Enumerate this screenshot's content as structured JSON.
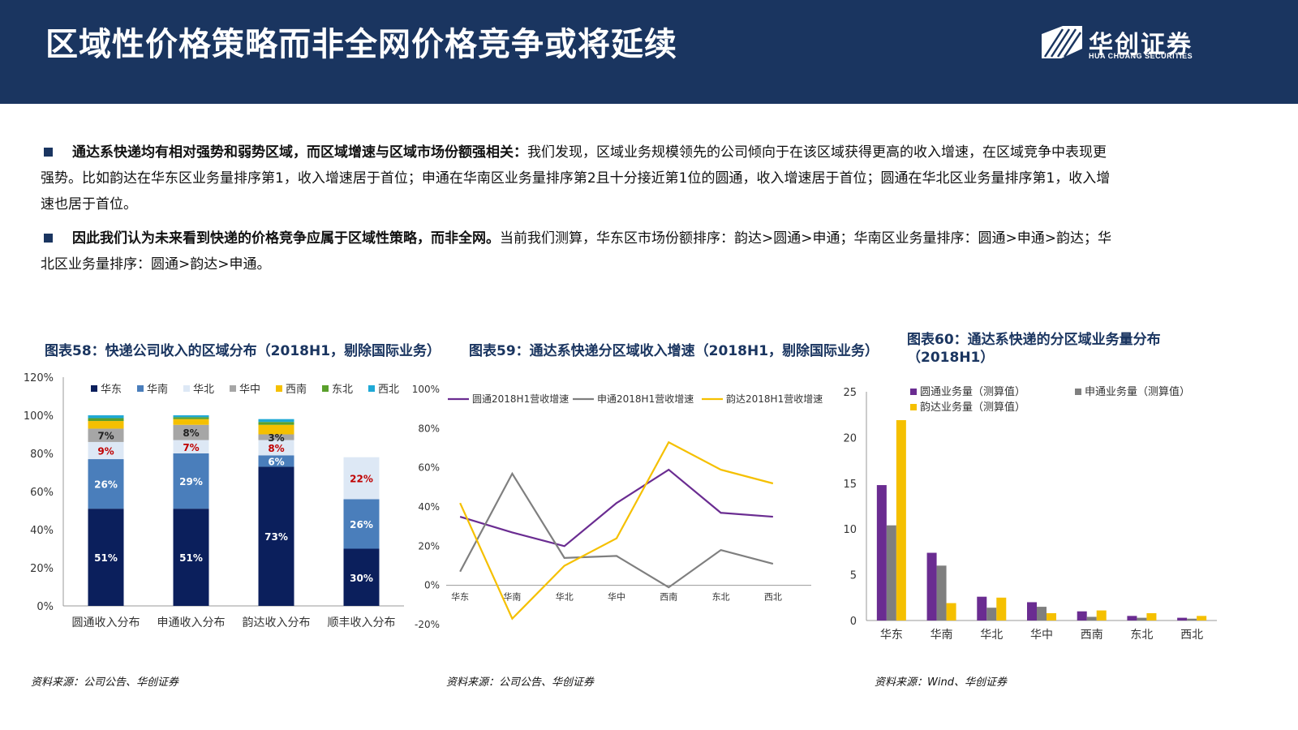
{
  "header": {
    "title": "区域性价格策略而非全网价格竞争或将延续",
    "logo_text": "华创证券",
    "logo_sub": "HUA CHUANG SECURITIES"
  },
  "bullets": [
    {
      "bold": "通达系快递均有相对强势和弱势区域，而区域增速与区域市场份额强相关：",
      "text": "我们发现，区域业务规模领先的公司倾向于在该区域获得更高的收入增速，在区域竞争中表现更强势。比如韵达在华东区业务量排序第1，收入增速居于首位；申通在华南区业务量排序第2且十分接近第1位的圆通，收入增速居于首位；圆通在华北区业务量排序第1，收入增速也居于首位。"
    },
    {
      "bold": "因此我们认为未来看到快递的价格竞争应属于区域性策略，而非全网。",
      "text": "当前我们测算，华东区市场份额排序：韵达>圆通>申通；华南区业务量排序：圆通>申通>韵达；华北区业务量排序：圆通>韵达>申通。"
    }
  ],
  "colors": {
    "navy": "#1a3560",
    "huadong": "#0b1f5c",
    "huanan": "#4a7ebb",
    "huabei": "#dde8f5",
    "huazhong": "#a6a6a6",
    "xinan": "#f5c000",
    "dongbei": "#5aa02c",
    "xibei": "#1fa9d6",
    "yuantong": "#6a2c91",
    "shentong": "#7f7f7f",
    "yunda": "#f5c000",
    "red_label": "#c00000"
  },
  "chart_data": [
    {
      "id": "fig58",
      "type": "bar",
      "stacked": true,
      "title": "图表58：快递公司收入的区域分布（2018H1，剔除国际业务）",
      "categories": [
        "圆通收入分布",
        "申通收入分布",
        "韵达收入分布",
        "顺丰收入分布"
      ],
      "series": [
        {
          "name": "华东",
          "values": [
            51,
            51,
            73,
            30
          ],
          "color": "#0b1f5c"
        },
        {
          "name": "华南",
          "values": [
            26,
            29,
            6,
            26
          ],
          "color": "#4a7ebb"
        },
        {
          "name": "华北",
          "values": [
            9,
            7,
            8,
            22
          ],
          "color": "#dde8f5"
        },
        {
          "name": "华中",
          "values": [
            7,
            8,
            3,
            0
          ],
          "color": "#a6a6a6"
        },
        {
          "name": "西南",
          "values": [
            4,
            3,
            5,
            0
          ],
          "color": "#f5c000"
        },
        {
          "name": "东北",
          "values": [
            1.5,
            1,
            1.5,
            0
          ],
          "color": "#5aa02c"
        },
        {
          "name": "西北",
          "values": [
            1.5,
            1,
            1.5,
            0
          ],
          "color": "#1fa9d6"
        }
      ],
      "data_labels": [
        {
          "cat": 0,
          "series": 0,
          "text": "51%"
        },
        {
          "cat": 0,
          "series": 1,
          "text": "26%"
        },
        {
          "cat": 0,
          "series": 2,
          "text": "9%"
        },
        {
          "cat": 0,
          "series": 3,
          "text": "7%"
        },
        {
          "cat": 1,
          "series": 0,
          "text": "51%"
        },
        {
          "cat": 1,
          "series": 1,
          "text": "29%"
        },
        {
          "cat": 1,
          "series": 2,
          "text": "7%"
        },
        {
          "cat": 1,
          "series": 3,
          "text": "8%"
        },
        {
          "cat": 2,
          "series": 0,
          "text": "73%"
        },
        {
          "cat": 2,
          "series": 1,
          "text": "6%"
        },
        {
          "cat": 2,
          "series": 2,
          "text": "8%"
        },
        {
          "cat": 2,
          "series": 3,
          "text": "3%"
        },
        {
          "cat": 3,
          "series": 0,
          "text": "30%"
        },
        {
          "cat": 3,
          "series": 1,
          "text": "26%"
        },
        {
          "cat": 3,
          "series": 2,
          "text": "22%"
        }
      ],
      "yticks": [
        "0%",
        "20%",
        "40%",
        "60%",
        "80%",
        "100%",
        "120%"
      ],
      "ylim": [
        0,
        120
      ],
      "legend": "top",
      "source": "资料来源：公司公告、华创证券"
    },
    {
      "id": "fig59",
      "type": "line",
      "title": "图表59：通达系快递分区域收入增速（2018H1，剔除国际业务）",
      "categories": [
        "华东",
        "华南",
        "华北",
        "华中",
        "西南",
        "东北",
        "西北"
      ],
      "series": [
        {
          "name": "圆通2018H1营收增速",
          "values": [
            35,
            27,
            20,
            42,
            59,
            37,
            35
          ],
          "color": "#6a2c91"
        },
        {
          "name": "申通2018H1营收增速",
          "values": [
            7,
            57,
            14,
            15,
            -1,
            18,
            11
          ],
          "color": "#7f7f7f"
        },
        {
          "name": "韵达2018H1营收增速",
          "values": [
            42,
            -17,
            10,
            24,
            73,
            59,
            52
          ],
          "color": "#f5c000"
        }
      ],
      "yticks": [
        "-20%",
        "0%",
        "20%",
        "40%",
        "60%",
        "80%",
        "100%"
      ],
      "ylim": [
        -20,
        100
      ],
      "legend": "top",
      "source": "资料来源：公司公告、华创证券"
    },
    {
      "id": "fig60",
      "type": "bar",
      "title": "图表60：通达系快递的分区域业务量分布（2018H1）",
      "categories": [
        "华东",
        "华南",
        "华北",
        "华中",
        "西南",
        "东北",
        "西北"
      ],
      "series": [
        {
          "name": "圆通业务量（测算值）",
          "values": [
            14.8,
            7.4,
            2.6,
            2.0,
            1.0,
            0.5,
            0.3
          ],
          "color": "#6a2c91"
        },
        {
          "name": "申通业务量（测算值）",
          "values": [
            10.4,
            6.0,
            1.4,
            1.5,
            0.4,
            0.3,
            0.2
          ],
          "color": "#7f7f7f"
        },
        {
          "name": "韵达业务量（测算值）",
          "values": [
            21.9,
            1.9,
            2.5,
            0.8,
            1.1,
            0.8,
            0.5
          ],
          "color": "#f5c000"
        }
      ],
      "yticks": [
        "0",
        "5",
        "10",
        "15",
        "20",
        "25"
      ],
      "ylim": [
        0,
        25
      ],
      "legend": "top",
      "source": "资料来源：Wind、华创证券"
    }
  ]
}
